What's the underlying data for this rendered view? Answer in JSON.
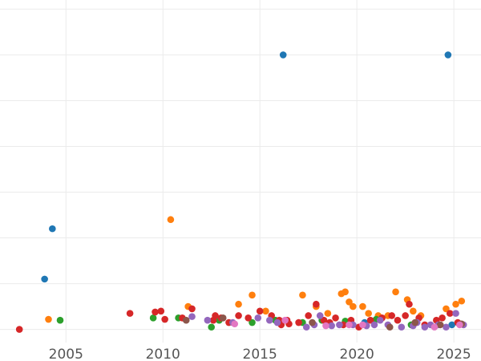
{
  "chart_data": {
    "type": "scatter",
    "title": "",
    "xlabel": "",
    "ylabel": "",
    "xlim": [
      2001.6,
      2026.4
    ],
    "ylim": [
      -0.2,
      7.2
    ],
    "x_ticks": [
      2005,
      2010,
      2015,
      2020,
      2025
    ],
    "x_tick_labels": [
      "2005",
      "2010",
      "2015",
      "2020",
      "2025"
    ],
    "y_gridlines": [
      0,
      1,
      2,
      3,
      4,
      5,
      6,
      7
    ],
    "grid": true,
    "legend": "none",
    "series": [
      {
        "color": "#1f77b4",
        "points": [
          [
            2003.9,
            1.1
          ],
          [
            2004.3,
            2.2
          ],
          [
            2016.2,
            6.0
          ],
          [
            2024.7,
            6.0
          ],
          [
            2016.0,
            0.15
          ],
          [
            2020.4,
            0.15
          ],
          [
            2024.9,
            0.1
          ]
        ]
      },
      {
        "color": "#ff7f0e",
        "points": [
          [
            2004.1,
            0.22
          ],
          [
            2010.4,
            2.4
          ],
          [
            2011.3,
            0.5
          ],
          [
            2013.9,
            0.55
          ],
          [
            2014.6,
            0.75
          ],
          [
            2015.3,
            0.4
          ],
          [
            2017.2,
            0.75
          ],
          [
            2017.9,
            0.5
          ],
          [
            2019.2,
            0.78
          ],
          [
            2019.4,
            0.82
          ],
          [
            2019.6,
            0.6
          ],
          [
            2019.8,
            0.5
          ],
          [
            2020.3,
            0.5
          ],
          [
            2020.6,
            0.35
          ],
          [
            2021.1,
            0.3
          ],
          [
            2022.0,
            0.82
          ],
          [
            2022.6,
            0.65
          ],
          [
            2022.9,
            0.4
          ],
          [
            2023.3,
            0.3
          ],
          [
            2024.6,
            0.45
          ],
          [
            2025.1,
            0.55
          ],
          [
            2025.4,
            0.62
          ],
          [
            2021.6,
            0.3
          ],
          [
            2018.5,
            0.35
          ]
        ]
      },
      {
        "color": "#2ca02c",
        "points": [
          [
            2004.7,
            0.2
          ],
          [
            2009.5,
            0.25
          ],
          [
            2010.8,
            0.25
          ],
          [
            2012.5,
            0.05
          ],
          [
            2012.9,
            0.2
          ],
          [
            2014.6,
            0.15
          ],
          [
            2015.8,
            0.2
          ],
          [
            2017.2,
            0.15
          ],
          [
            2018.2,
            0.2
          ],
          [
            2019.4,
            0.18
          ],
          [
            2021.0,
            0.22
          ],
          [
            2022.8,
            0.1
          ],
          [
            2025.3,
            0.12
          ]
        ]
      },
      {
        "color": "#d62728",
        "points": [
          [
            2002.6,
            0.0
          ],
          [
            2008.3,
            0.35
          ],
          [
            2009.6,
            0.38
          ],
          [
            2009.9,
            0.4
          ],
          [
            2010.1,
            0.22
          ],
          [
            2011.0,
            0.25
          ],
          [
            2011.5,
            0.45
          ],
          [
            2012.6,
            0.2
          ],
          [
            2012.7,
            0.3
          ],
          [
            2013.0,
            0.25
          ],
          [
            2013.4,
            0.15
          ],
          [
            2013.9,
            0.3
          ],
          [
            2014.4,
            0.25
          ],
          [
            2015.0,
            0.4
          ],
          [
            2015.6,
            0.3
          ],
          [
            2016.0,
            0.2
          ],
          [
            2016.1,
            0.1
          ],
          [
            2016.4,
            0.2
          ],
          [
            2016.5,
            0.12
          ],
          [
            2017.0,
            0.15
          ],
          [
            2017.5,
            0.3
          ],
          [
            2017.9,
            0.55
          ],
          [
            2018.3,
            0.2
          ],
          [
            2018.6,
            0.15
          ],
          [
            2018.9,
            0.25
          ],
          [
            2019.3,
            0.1
          ],
          [
            2019.7,
            0.2
          ],
          [
            2020.1,
            0.05
          ],
          [
            2020.7,
            0.2
          ],
          [
            2021.3,
            0.25
          ],
          [
            2021.8,
            0.3
          ],
          [
            2022.1,
            0.2
          ],
          [
            2022.5,
            0.3
          ],
          [
            2022.7,
            0.55
          ],
          [
            2023.2,
            0.25
          ],
          [
            2023.5,
            0.1
          ],
          [
            2024.1,
            0.2
          ],
          [
            2024.4,
            0.25
          ],
          [
            2024.8,
            0.35
          ],
          [
            2025.2,
            0.15
          ]
        ]
      },
      {
        "color": "#9467bd",
        "points": [
          [
            2011.5,
            0.28
          ],
          [
            2012.3,
            0.2
          ],
          [
            2013.6,
            0.15
          ],
          [
            2014.9,
            0.25
          ],
          [
            2015.5,
            0.2
          ],
          [
            2015.9,
            0.15
          ],
          [
            2017.4,
            0.05
          ],
          [
            2017.8,
            0.1
          ],
          [
            2018.1,
            0.3
          ],
          [
            2018.7,
            0.08
          ],
          [
            2019.1,
            0.1
          ],
          [
            2019.8,
            0.1
          ],
          [
            2020.5,
            0.08
          ],
          [
            2020.9,
            0.1
          ],
          [
            2021.2,
            0.2
          ],
          [
            2021.6,
            0.1
          ],
          [
            2022.3,
            0.05
          ],
          [
            2022.9,
            0.08
          ],
          [
            2023.1,
            0.15
          ],
          [
            2023.5,
            0.05
          ],
          [
            2023.8,
            0.1
          ],
          [
            2024.2,
            0.1
          ],
          [
            2024.6,
            0.05
          ],
          [
            2025.1,
            0.35
          ],
          [
            2025.5,
            0.1
          ]
        ]
      },
      {
        "color": "#8c564b",
        "points": [
          [
            2011.2,
            0.2
          ],
          [
            2013.1,
            0.25
          ],
          [
            2017.7,
            0.15
          ],
          [
            2021.7,
            0.05
          ],
          [
            2023.0,
            0.15
          ],
          [
            2024.3,
            0.1
          ],
          [
            2025.4,
            0.12
          ]
        ]
      },
      {
        "color": "#e377c2",
        "points": [
          [
            2013.7,
            0.12
          ],
          [
            2016.3,
            0.2
          ],
          [
            2018.4,
            0.08
          ],
          [
            2019.6,
            0.1
          ],
          [
            2025.3,
            0.1
          ],
          [
            2024.0,
            0.05
          ],
          [
            2020.3,
            0.1
          ]
        ]
      }
    ]
  }
}
